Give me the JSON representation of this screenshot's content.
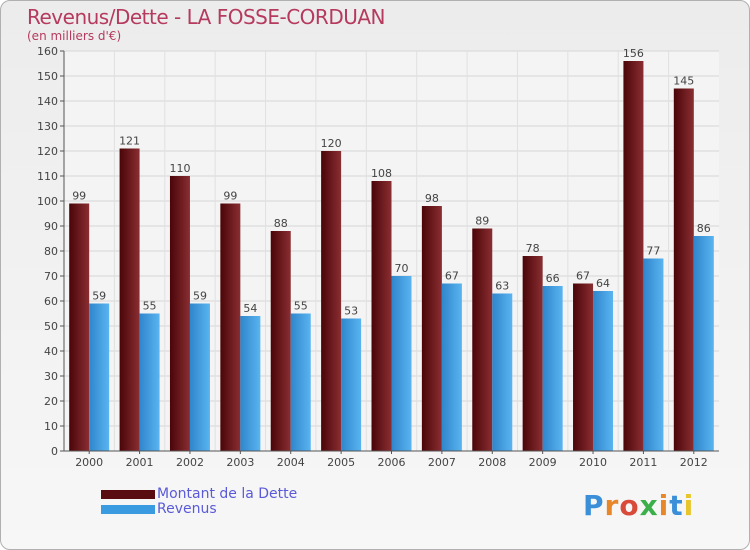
{
  "chart_data": {
    "type": "bar",
    "title": "Revenus/Dette - LA FOSSE-CORDUAN",
    "subtitle": "(en milliers d'€)",
    "categories": [
      "2000",
      "2001",
      "2002",
      "2003",
      "2004",
      "2005",
      "2006",
      "2007",
      "2008",
      "2009",
      "2010",
      "2011",
      "2012"
    ],
    "series": [
      {
        "name": "Montant de la Dette",
        "color": "#7a1f22",
        "values": [
          99,
          121,
          110,
          99,
          88,
          120,
          108,
          98,
          89,
          78,
          67,
          156,
          145
        ]
      },
      {
        "name": "Revenus",
        "color": "#3b9be0",
        "values": [
          59,
          55,
          59,
          54,
          55,
          53,
          70,
          67,
          63,
          66,
          64,
          77,
          86
        ]
      }
    ],
    "ylim": [
      0,
      160
    ],
    "yticks": [
      0,
      10,
      20,
      30,
      40,
      50,
      60,
      70,
      80,
      90,
      100,
      110,
      120,
      130,
      140,
      150,
      160
    ],
    "xlabel": "",
    "ylabel": "",
    "grid": true,
    "legend_position": "bottom-left"
  },
  "legend": {
    "items": [
      {
        "label": "Montant de la Dette",
        "color": "#5a0d10"
      },
      {
        "label": "Revenus",
        "color": "#3b9be0"
      }
    ]
  },
  "logo": {
    "text": "Proxiti"
  }
}
